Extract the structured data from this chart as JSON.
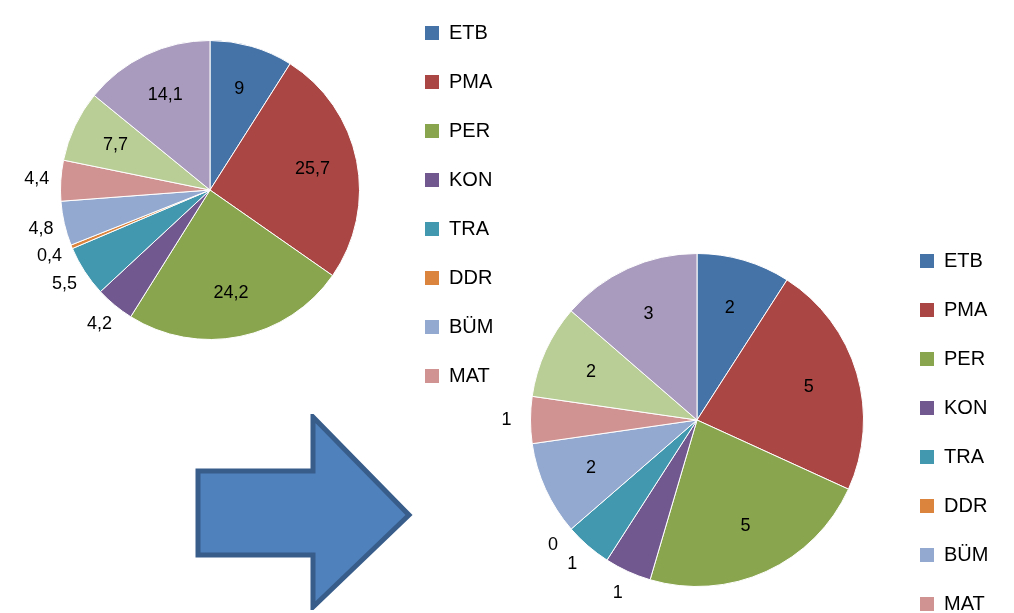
{
  "chart_data": [
    {
      "type": "pie",
      "categories": [
        "ETB",
        "PMA",
        "PER",
        "KON",
        "TRA",
        "DDR",
        "BÜM",
        "MAT",
        null,
        null
      ],
      "values": [
        9,
        25.7,
        24.2,
        4.2,
        5.5,
        0.4,
        4.8,
        4.4,
        7.7,
        14.1
      ],
      "value_labels": [
        "9",
        "25,7",
        "24,2",
        "4,2",
        "5,5",
        "0,4",
        "4,8",
        "4,4",
        "7,7",
        "14,1"
      ],
      "colors": [
        "#4572a7",
        "#aa4643",
        "#89a54e",
        "#71588f",
        "#4198af",
        "#db843d",
        "#93a9cf",
        "#d19392",
        "#b9cd96",
        "#a99bbd"
      ],
      "legend": "right"
    },
    {
      "type": "pie",
      "categories": [
        "ETB",
        "PMA",
        "PER",
        "KON",
        "TRA",
        "DDR",
        "BÜM",
        "MAT",
        null,
        null
      ],
      "values": [
        2,
        5,
        5,
        1,
        1,
        0,
        2,
        1,
        2,
        3
      ],
      "value_labels": [
        "2",
        "5",
        "5",
        "1",
        "1",
        "0",
        "2",
        "1",
        "2",
        "3"
      ],
      "colors": [
        "#4572a7",
        "#aa4643",
        "#89a54e",
        "#71588f",
        "#4198af",
        "#db843d",
        "#93a9cf",
        "#d19392",
        "#b9cd96",
        "#a99bbd"
      ],
      "legend": "right"
    }
  ]
}
